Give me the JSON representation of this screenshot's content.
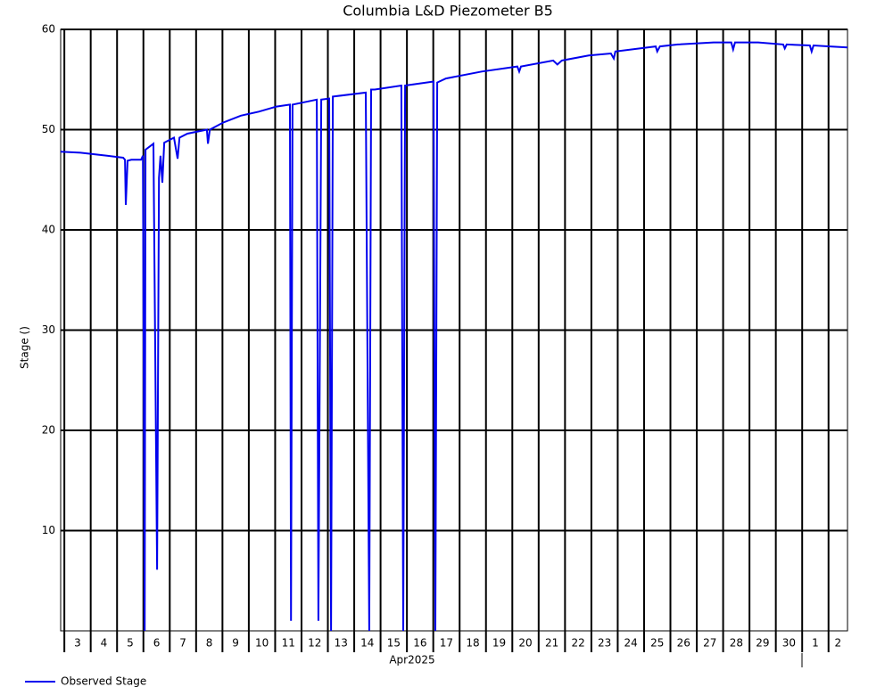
{
  "chart_data": {
    "type": "line",
    "title": "Columbia L&D Piezometer B5",
    "y_label": "Stage ()",
    "x_label": "Apr2025",
    "categories": [
      "3",
      "4",
      "5",
      "6",
      "7",
      "8",
      "9",
      "10",
      "11",
      "12",
      "13",
      "14",
      "15",
      "16",
      "17",
      "18",
      "19",
      "20",
      "21",
      "22",
      "23",
      "24",
      "25",
      "26",
      "27",
      "28",
      "29",
      "30",
      "1",
      "2"
    ],
    "xlim": [
      -0.14,
      29.72
    ],
    "ylim": [
      0,
      60
    ],
    "yticks": [
      10,
      20,
      30,
      40,
      50,
      60
    ],
    "grid": true,
    "series": [
      {
        "name": "Observed Stage",
        "color": "#0000ee",
        "x": [
          -0.14,
          0.61,
          0.95,
          1.62,
          2.23,
          2.3,
          2.33,
          2.4,
          2.54,
          2.91,
          2.98,
          3.05,
          3.08,
          3.38,
          3.52,
          3.59,
          3.65,
          3.72,
          3.79,
          4.16,
          4.3,
          4.37,
          4.67,
          5.41,
          5.45,
          5.52,
          6.02,
          6.7,
          7.38,
          8.05,
          8.56,
          8.6,
          8.66,
          9.58,
          9.64,
          9.75,
          10.05,
          10.12,
          10.19,
          11.44,
          11.57,
          11.64,
          11.78,
          12.79,
          12.86,
          12.93,
          14.01,
          14.08,
          14.15,
          14.48,
          15.84,
          17.19,
          17.26,
          17.33,
          18.55,
          18.71,
          18.88,
          19.9,
          20.74,
          20.85,
          20.91,
          22.44,
          22.5,
          22.6,
          23.28,
          24.64,
          25.31,
          25.38,
          25.45,
          26.33,
          27.28,
          27.34,
          27.41,
          28.29,
          28.36,
          28.43,
          29.04,
          29.72
        ],
        "values": [
          47.8,
          47.7,
          47.6,
          47.4,
          47.2,
          47.0,
          42.5,
          46.9,
          47.0,
          47.0,
          47.4,
          0,
          48.0,
          48.6,
          6.1,
          45.2,
          47.4,
          44.7,
          48.7,
          49.2,
          47.1,
          49.2,
          49.6,
          50.0,
          48.6,
          50.0,
          50.7,
          51.4,
          51.8,
          52.3,
          52.5,
          1.0,
          52.5,
          53.0,
          1.0,
          53.0,
          53.1,
          0,
          53.3,
          53.7,
          0,
          54.0,
          54.0,
          54.4,
          0,
          54.4,
          54.8,
          0,
          54.7,
          55.1,
          55.8,
          56.3,
          55.8,
          56.3,
          56.9,
          56.5,
          56.9,
          57.4,
          57.6,
          57.1,
          57.8,
          58.3,
          57.8,
          58.3,
          58.5,
          58.7,
          58.7,
          58.0,
          58.7,
          58.7,
          58.5,
          58.1,
          58.5,
          58.4,
          57.8,
          58.4,
          58.3,
          58.2
        ]
      }
    ]
  }
}
